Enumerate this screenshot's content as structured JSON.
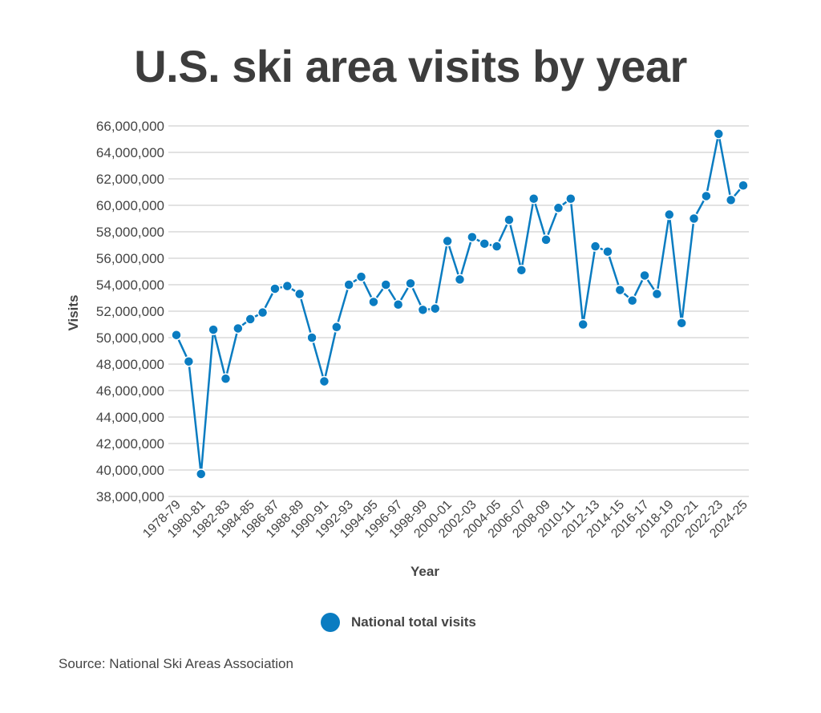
{
  "title": "U.S. ski area visits by year",
  "source": "Source: National Ski Areas Association",
  "colors": {
    "series": "#0a7cc1",
    "grid": "#d9d9d9",
    "text": "#444444"
  },
  "chart_data": {
    "type": "line",
    "title": "U.S. ski area visits by year",
    "xlabel": "Year",
    "ylabel": "Visits",
    "ylim": [
      38000000,
      66000000
    ],
    "ytick_step": 2000000,
    "yticks": [
      "38,000,000",
      "40,000,000",
      "42,000,000",
      "44,000,000",
      "46,000,000",
      "48,000,000",
      "50,000,000",
      "52,000,000",
      "54,000,000",
      "56,000,000",
      "58,000,000",
      "60,000,000",
      "62,000,000",
      "64,000,000",
      "66,000,000"
    ],
    "xtick_labels": [
      "1978-79",
      "1980-81",
      "1982-83",
      "1984-85",
      "1986-87",
      "1988-89",
      "1990-91",
      "1992-93",
      "1994-95",
      "1996-97",
      "1998-99",
      "2000-01",
      "2002-03",
      "2004-05",
      "2006-07",
      "2008-09",
      "2010-11",
      "2012-13",
      "2014-15",
      "2016-17",
      "2018-19",
      "2020-21",
      "2022-23",
      "2024-25"
    ],
    "categories": [
      "1978-79",
      "1979-80",
      "1980-81",
      "1981-82",
      "1982-83",
      "1983-84",
      "1984-85",
      "1985-86",
      "1986-87",
      "1987-88",
      "1988-89",
      "1989-90",
      "1990-91",
      "1991-92",
      "1992-93",
      "1993-94",
      "1994-95",
      "1995-96",
      "1996-97",
      "1997-98",
      "1998-99",
      "1999-00",
      "2000-01",
      "2001-02",
      "2002-03",
      "2003-04",
      "2004-05",
      "2005-06",
      "2006-07",
      "2007-08",
      "2008-09",
      "2009-10",
      "2010-11",
      "2011-12",
      "2012-13",
      "2013-14",
      "2014-15",
      "2015-16",
      "2016-17",
      "2017-18",
      "2018-19",
      "2019-20",
      "2020-21",
      "2021-22",
      "2022-23",
      "2023-24",
      "2024-25"
    ],
    "series": [
      {
        "name": "National total visits",
        "values": [
          50200000,
          48200000,
          39700000,
          50600000,
          46900000,
          50700000,
          51400000,
          51900000,
          53700000,
          53900000,
          53300000,
          50000000,
          46700000,
          50800000,
          54000000,
          54600000,
          52700000,
          54000000,
          52500000,
          54100000,
          52100000,
          52200000,
          57300000,
          54400000,
          57600000,
          57100000,
          56900000,
          58900000,
          55100000,
          60500000,
          57400000,
          59800000,
          60500000,
          51000000,
          56900000,
          56500000,
          53600000,
          52800000,
          54700000,
          53300000,
          59300000,
          51100000,
          59000000,
          60700000,
          65400000,
          60400000,
          61500000
        ]
      }
    ],
    "grid": true,
    "legend": "bottom-center"
  }
}
